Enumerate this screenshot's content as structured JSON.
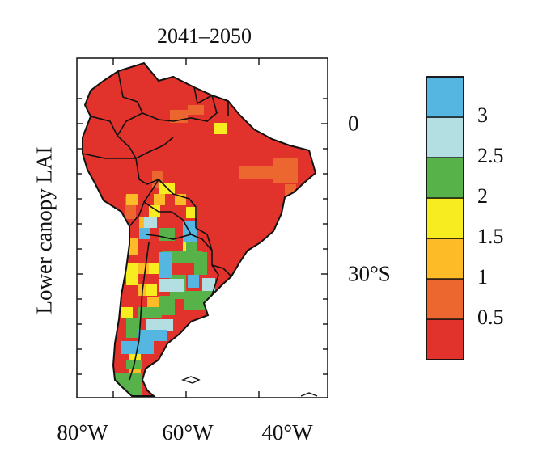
{
  "title": "2041–2050",
  "ylabel": "Lower canopy LAI",
  "lon_labels": [
    "80°W",
    "60°W",
    "40°W"
  ],
  "lat_labels": [
    "0",
    "30°S"
  ],
  "colorbar": {
    "labels": [
      "3",
      "2.5",
      "2",
      "1.5",
      "1",
      "0.5"
    ],
    "colors": [
      "#e1322b",
      "#ec6630",
      "#fcbb27",
      "#f7ec20",
      "#58b24a",
      "#b3dfe2",
      "#56b6e2"
    ]
  },
  "colors": {
    "red": "#e1322b",
    "orange": "#ec6630",
    "amber": "#fcbb27",
    "yellow": "#f7ec20",
    "green": "#58b24a",
    "lightblue": "#b3dfe2",
    "blue": "#56b6e2"
  }
}
